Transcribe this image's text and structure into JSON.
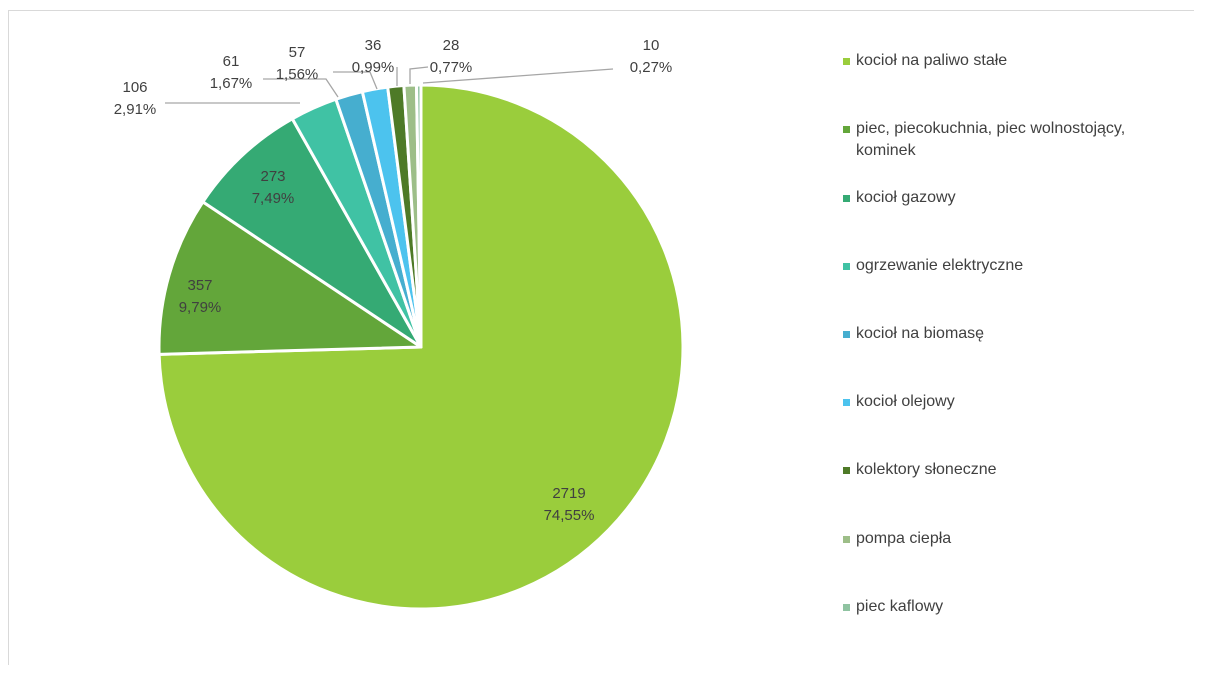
{
  "chart_data": {
    "type": "pie",
    "title": "",
    "start_angle_deg": 0,
    "direction": "clockwise",
    "legend_position": "right",
    "series": [
      {
        "values": [
          2719,
          357,
          273,
          106,
          61,
          57,
          36,
          28,
          10
        ],
        "percent_labels": [
          "74,55%",
          "9,79%",
          "7,49%",
          "2,91%",
          "1,67%",
          "1,56%",
          "0,99%",
          "0,77%",
          "0,27%"
        ]
      }
    ],
    "categories": [
      "kocioł na paliwo stałe",
      "piec, piecokuchnia, piec wolnostojący, kominek",
      "kocioł gazowy",
      "ogrzewanie elektryczne",
      "kocioł na biomasę",
      "kocioł olejowy",
      "kolektory słoneczne",
      "pompa ciepła",
      "piec kaflowy"
    ],
    "colors": [
      "#9ACD3C",
      "#63A63A",
      "#35AA74",
      "#40C2A4",
      "#46AECF",
      "#4CC3EE",
      "#4E7A27",
      "#9DBE88",
      "#8FC3A1"
    ]
  }
}
